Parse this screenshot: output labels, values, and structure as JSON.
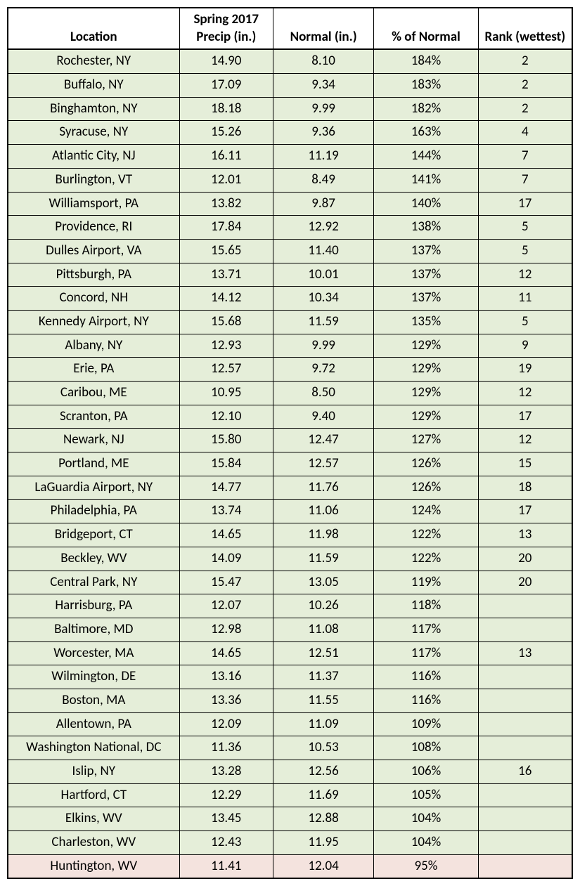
{
  "table": {
    "columns": [
      "Location",
      "Spring 2017 Precip (in.)",
      "Normal (in.)",
      "% of Normal",
      "Rank (wettest)"
    ],
    "colors": {
      "row_green": "#e5eed9",
      "row_pink": "#f4e3de",
      "header_bg": "#ffffff",
      "border": "#000000",
      "text": "#000000"
    },
    "font_size": 19,
    "rows": [
      {
        "location": "Rochester, NY",
        "precip": "14.90",
        "normal": "8.10",
        "pct": "184%",
        "rank": "2",
        "color": "green"
      },
      {
        "location": "Buffalo, NY",
        "precip": "17.09",
        "normal": "9.34",
        "pct": "183%",
        "rank": "2",
        "color": "green"
      },
      {
        "location": "Binghamton, NY",
        "precip": "18.18",
        "normal": "9.99",
        "pct": "182%",
        "rank": "2",
        "color": "green"
      },
      {
        "location": "Syracuse, NY",
        "precip": "15.26",
        "normal": "9.36",
        "pct": "163%",
        "rank": "4",
        "color": "green"
      },
      {
        "location": "Atlantic City, NJ",
        "precip": "16.11",
        "normal": "11.19",
        "pct": "144%",
        "rank": "7",
        "color": "green"
      },
      {
        "location": "Burlington, VT",
        "precip": "12.01",
        "normal": "8.49",
        "pct": "141%",
        "rank": "7",
        "color": "green"
      },
      {
        "location": "Williamsport, PA",
        "precip": "13.82",
        "normal": "9.87",
        "pct": "140%",
        "rank": "17",
        "color": "green"
      },
      {
        "location": "Providence, RI",
        "precip": "17.84",
        "normal": "12.92",
        "pct": "138%",
        "rank": "5",
        "color": "green"
      },
      {
        "location": "Dulles Airport, VA",
        "precip": "15.65",
        "normal": "11.40",
        "pct": "137%",
        "rank": "5",
        "color": "green"
      },
      {
        "location": "Pittsburgh, PA",
        "precip": "13.71",
        "normal": "10.01",
        "pct": "137%",
        "rank": "12",
        "color": "green"
      },
      {
        "location": "Concord, NH",
        "precip": "14.12",
        "normal": "10.34",
        "pct": "137%",
        "rank": "11",
        "color": "green"
      },
      {
        "location": "Kennedy Airport, NY",
        "precip": "15.68",
        "normal": "11.59",
        "pct": "135%",
        "rank": "5",
        "color": "green"
      },
      {
        "location": "Albany, NY",
        "precip": "12.93",
        "normal": "9.99",
        "pct": "129%",
        "rank": "9",
        "color": "green"
      },
      {
        "location": "Erie, PA",
        "precip": "12.57",
        "normal": "9.72",
        "pct": "129%",
        "rank": "19",
        "color": "green"
      },
      {
        "location": "Caribou, ME",
        "precip": "10.95",
        "normal": "8.50",
        "pct": "129%",
        "rank": "12",
        "color": "green"
      },
      {
        "location": "Scranton, PA",
        "precip": "12.10",
        "normal": "9.40",
        "pct": "129%",
        "rank": "17",
        "color": "green"
      },
      {
        "location": "Newark, NJ",
        "precip": "15.80",
        "normal": "12.47",
        "pct": "127%",
        "rank": "12",
        "color": "green"
      },
      {
        "location": "Portland, ME",
        "precip": "15.84",
        "normal": "12.57",
        "pct": "126%",
        "rank": "15",
        "color": "green"
      },
      {
        "location": "LaGuardia Airport, NY",
        "precip": "14.77",
        "normal": "11.76",
        "pct": "126%",
        "rank": "18",
        "color": "green"
      },
      {
        "location": "Philadelphia, PA",
        "precip": "13.74",
        "normal": "11.06",
        "pct": "124%",
        "rank": "17",
        "color": "green"
      },
      {
        "location": "Bridgeport, CT",
        "precip": "14.65",
        "normal": "11.98",
        "pct": "122%",
        "rank": "13",
        "color": "green"
      },
      {
        "location": "Beckley, WV",
        "precip": "14.09",
        "normal": "11.59",
        "pct": "122%",
        "rank": "20",
        "color": "green"
      },
      {
        "location": "Central Park, NY",
        "precip": "15.47",
        "normal": "13.05",
        "pct": "119%",
        "rank": "20",
        "color": "green"
      },
      {
        "location": "Harrisburg, PA",
        "precip": "12.07",
        "normal": "10.26",
        "pct": "118%",
        "rank": "",
        "color": "green"
      },
      {
        "location": "Baltimore, MD",
        "precip": "12.98",
        "normal": "11.08",
        "pct": "117%",
        "rank": "",
        "color": "green"
      },
      {
        "location": "Worcester, MA",
        "precip": "14.65",
        "normal": "12.51",
        "pct": "117%",
        "rank": "13",
        "color": "green"
      },
      {
        "location": "Wilmington, DE",
        "precip": "13.16",
        "normal": "11.37",
        "pct": "116%",
        "rank": "",
        "color": "green"
      },
      {
        "location": "Boston, MA",
        "precip": "13.36",
        "normal": "11.55",
        "pct": "116%",
        "rank": "",
        "color": "green"
      },
      {
        "location": "Allentown, PA",
        "precip": "12.09",
        "normal": "11.09",
        "pct": "109%",
        "rank": "",
        "color": "green"
      },
      {
        "location": "Washington National, DC",
        "precip": "11.36",
        "normal": "10.53",
        "pct": "108%",
        "rank": "",
        "color": "green"
      },
      {
        "location": "Islip, NY",
        "precip": "13.28",
        "normal": "12.56",
        "pct": "106%",
        "rank": "16",
        "color": "green"
      },
      {
        "location": "Hartford, CT",
        "precip": "12.29",
        "normal": "11.69",
        "pct": "105%",
        "rank": "",
        "color": "green"
      },
      {
        "location": "Elkins, WV",
        "precip": "13.45",
        "normal": "12.88",
        "pct": "104%",
        "rank": "",
        "color": "green"
      },
      {
        "location": "Charleston, WV",
        "precip": "12.43",
        "normal": "11.95",
        "pct": "104%",
        "rank": "",
        "color": "green"
      },
      {
        "location": "Huntington, WV",
        "precip": "11.41",
        "normal": "12.04",
        "pct": "95%",
        "rank": "",
        "color": "pink"
      }
    ]
  }
}
